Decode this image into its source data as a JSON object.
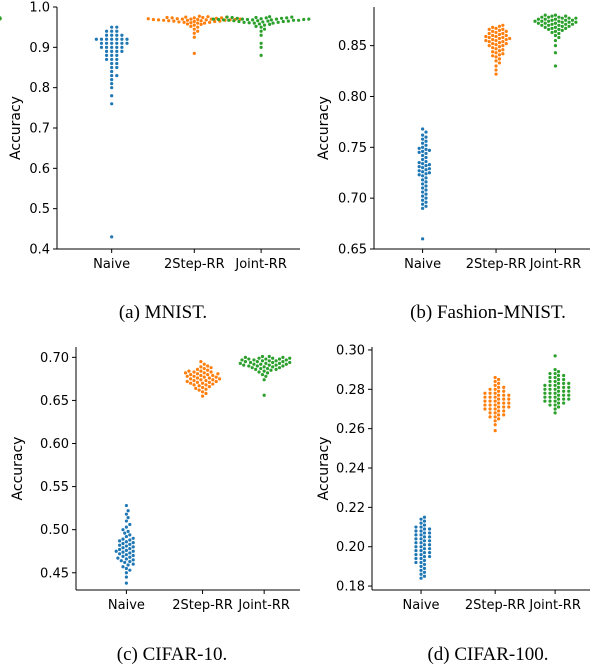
{
  "colors": {
    "naive": "#1f77b4",
    "twostep": "#ff7f0e",
    "joint": "#2ca02c",
    "axis": "#000000"
  },
  "chart_data": [
    {
      "type": "scatter",
      "caption": "(a) MNIST.",
      "ylabel": "Accuracy",
      "categories": [
        "Naive",
        "2Step-RR",
        "Joint-RR"
      ],
      "yticks": [
        "0.4",
        "0.5",
        "0.6",
        "0.7",
        "0.8",
        "0.9",
        "1.0"
      ],
      "ylim": [
        0.4,
        1.0
      ],
      "series": [
        {
          "values": [
            0.43,
            0.76,
            0.78,
            0.8,
            0.81,
            0.82,
            0.83,
            0.83,
            0.84,
            0.85,
            0.85,
            0.86,
            0.86,
            0.87,
            0.87,
            0.87,
            0.88,
            0.88,
            0.88,
            0.89,
            0.89,
            0.89,
            0.89,
            0.9,
            0.9,
            0.9,
            0.9,
            0.9,
            0.91,
            0.91,
            0.91,
            0.91,
            0.91,
            0.91,
            0.92,
            0.92,
            0.92,
            0.92,
            0.92,
            0.92,
            0.92,
            0.93,
            0.93,
            0.93,
            0.93,
            0.94,
            0.94,
            0.94,
            0.95,
            0.95
          ]
        },
        {
          "values": [
            0.885,
            0.925,
            0.935,
            0.94,
            0.945,
            0.95,
            0.952,
            0.955,
            0.957,
            0.958,
            0.96,
            0.96,
            0.961,
            0.962,
            0.962,
            0.963,
            0.964,
            0.964,
            0.965,
            0.965,
            0.966,
            0.966,
            0.967,
            0.967,
            0.967,
            0.968,
            0.968,
            0.968,
            0.969,
            0.969,
            0.969,
            0.97,
            0.97,
            0.97,
            0.97,
            0.971,
            0.971,
            0.971,
            0.972,
            0.972,
            0.972,
            0.973,
            0.973,
            0.973,
            0.974,
            0.974,
            0.975,
            0.975,
            0.976,
            0.977
          ]
        },
        {
          "values": [
            0.88,
            0.9,
            0.91,
            0.93,
            0.94,
            0.945,
            0.95,
            0.952,
            0.955,
            0.957,
            0.958,
            0.96,
            0.96,
            0.961,
            0.962,
            0.962,
            0.963,
            0.964,
            0.964,
            0.965,
            0.965,
            0.966,
            0.966,
            0.967,
            0.967,
            0.967,
            0.968,
            0.968,
            0.968,
            0.969,
            0.969,
            0.969,
            0.97,
            0.97,
            0.97,
            0.97,
            0.971,
            0.971,
            0.971,
            0.972,
            0.972,
            0.972,
            0.973,
            0.973,
            0.973,
            0.974,
            0.974,
            0.975,
            0.975,
            0.976
          ]
        }
      ]
    },
    {
      "type": "scatter",
      "caption": "(b) Fashion-MNIST.",
      "ylabel": "Accuracy",
      "categories": [
        "Naive",
        "2Step-RR",
        "Joint-RR"
      ],
      "yticks": [
        "0.65",
        "0.70",
        "0.75",
        "0.80",
        "0.85"
      ],
      "ylim": [
        0.65,
        0.888
      ],
      "series": [
        {
          "values": [
            0.66,
            0.69,
            0.692,
            0.694,
            0.696,
            0.698,
            0.7,
            0.702,
            0.704,
            0.706,
            0.708,
            0.71,
            0.712,
            0.714,
            0.716,
            0.718,
            0.72,
            0.722,
            0.723,
            0.724,
            0.725,
            0.726,
            0.727,
            0.728,
            0.729,
            0.73,
            0.731,
            0.732,
            0.733,
            0.734,
            0.735,
            0.736,
            0.738,
            0.74,
            0.742,
            0.744,
            0.745,
            0.746,
            0.747,
            0.748,
            0.749,
            0.75,
            0.752,
            0.754,
            0.756,
            0.758,
            0.76,
            0.762,
            0.765,
            0.768
          ]
        },
        {
          "values": [
            0.822,
            0.826,
            0.83,
            0.833,
            0.835,
            0.837,
            0.839,
            0.84,
            0.841,
            0.842,
            0.843,
            0.844,
            0.845,
            0.846,
            0.847,
            0.848,
            0.849,
            0.85,
            0.85,
            0.851,
            0.852,
            0.852,
            0.853,
            0.854,
            0.854,
            0.855,
            0.855,
            0.856,
            0.856,
            0.857,
            0.857,
            0.858,
            0.858,
            0.859,
            0.859,
            0.86,
            0.86,
            0.861,
            0.862,
            0.862,
            0.863,
            0.864,
            0.864,
            0.865,
            0.866,
            0.866,
            0.867,
            0.868,
            0.869,
            0.87
          ]
        },
        {
          "values": [
            0.83,
            0.843,
            0.85,
            0.855,
            0.858,
            0.86,
            0.862,
            0.863,
            0.864,
            0.865,
            0.866,
            0.866,
            0.867,
            0.867,
            0.868,
            0.868,
            0.869,
            0.869,
            0.87,
            0.87,
            0.87,
            0.871,
            0.871,
            0.871,
            0.872,
            0.872,
            0.872,
            0.873,
            0.873,
            0.873,
            0.874,
            0.874,
            0.874,
            0.874,
            0.875,
            0.875,
            0.875,
            0.876,
            0.876,
            0.876,
            0.877,
            0.877,
            0.877,
            0.878,
            0.878,
            0.878,
            0.879,
            0.879,
            0.88,
            0.88
          ]
        }
      ]
    },
    {
      "type": "scatter",
      "caption": "(c) CIFAR-10.",
      "ylabel": "Accuracy",
      "categories": [
        "Naive",
        "2Step-RR",
        "Joint-RR"
      ],
      "yticks": [
        "0.45",
        "0.50",
        "0.55",
        "0.60",
        "0.65",
        "0.70"
      ],
      "ylim": [
        0.43,
        0.712
      ],
      "series": [
        {
          "values": [
            0.438,
            0.445,
            0.45,
            0.453,
            0.455,
            0.457,
            0.459,
            0.46,
            0.462,
            0.463,
            0.464,
            0.465,
            0.466,
            0.467,
            0.468,
            0.469,
            0.47,
            0.471,
            0.472,
            0.473,
            0.474,
            0.475,
            0.475,
            0.476,
            0.477,
            0.478,
            0.479,
            0.48,
            0.481,
            0.482,
            0.483,
            0.484,
            0.485,
            0.486,
            0.487,
            0.488,
            0.489,
            0.49,
            0.492,
            0.494,
            0.496,
            0.498,
            0.5,
            0.503,
            0.506,
            0.51,
            0.514,
            0.518,
            0.522,
            0.528
          ]
        },
        {
          "values": [
            0.655,
            0.658,
            0.66,
            0.662,
            0.663,
            0.664,
            0.665,
            0.666,
            0.667,
            0.668,
            0.668,
            0.669,
            0.67,
            0.67,
            0.671,
            0.671,
            0.672,
            0.672,
            0.673,
            0.673,
            0.674,
            0.674,
            0.675,
            0.675,
            0.676,
            0.676,
            0.677,
            0.677,
            0.678,
            0.678,
            0.679,
            0.679,
            0.68,
            0.68,
            0.681,
            0.681,
            0.682,
            0.682,
            0.683,
            0.683,
            0.684,
            0.684,
            0.685,
            0.686,
            0.687,
            0.688,
            0.689,
            0.69,
            0.692,
            0.695
          ]
        },
        {
          "values": [
            0.656,
            0.674,
            0.678,
            0.68,
            0.682,
            0.683,
            0.684,
            0.685,
            0.686,
            0.686,
            0.687,
            0.687,
            0.688,
            0.688,
            0.689,
            0.689,
            0.69,
            0.69,
            0.69,
            0.691,
            0.691,
            0.691,
            0.692,
            0.692,
            0.692,
            0.693,
            0.693,
            0.693,
            0.694,
            0.694,
            0.694,
            0.695,
            0.695,
            0.695,
            0.696,
            0.696,
            0.696,
            0.697,
            0.697,
            0.697,
            0.698,
            0.698,
            0.698,
            0.699,
            0.699,
            0.699,
            0.7,
            0.7,
            0.701,
            0.701
          ]
        }
      ]
    },
    {
      "type": "scatter",
      "caption": "(d) CIFAR-100.",
      "ylabel": "Accuracy",
      "categories": [
        "Naive",
        "2Step-RR",
        "Joint-RR"
      ],
      "yticks": [
        "0.18",
        "0.20",
        "0.22",
        "0.24",
        "0.26",
        "0.28",
        "0.30"
      ],
      "ylim": [
        0.178,
        0.3015
      ],
      "series": [
        {
          "values": [
            0.184,
            0.185,
            0.186,
            0.187,
            0.188,
            0.189,
            0.19,
            0.191,
            0.192,
            0.192,
            0.193,
            0.194,
            0.194,
            0.195,
            0.195,
            0.196,
            0.196,
            0.197,
            0.197,
            0.198,
            0.198,
            0.199,
            0.199,
            0.2,
            0.2,
            0.201,
            0.201,
            0.202,
            0.202,
            0.203,
            0.203,
            0.204,
            0.204,
            0.205,
            0.205,
            0.206,
            0.206,
            0.207,
            0.207,
            0.208,
            0.208,
            0.209,
            0.209,
            0.21,
            0.21,
            0.211,
            0.212,
            0.213,
            0.214,
            0.215
          ]
        },
        {
          "values": [
            0.259,
            0.262,
            0.264,
            0.265,
            0.266,
            0.266,
            0.267,
            0.267,
            0.268,
            0.268,
            0.269,
            0.269,
            0.27,
            0.27,
            0.27,
            0.271,
            0.271,
            0.271,
            0.272,
            0.272,
            0.272,
            0.273,
            0.273,
            0.273,
            0.274,
            0.274,
            0.274,
            0.275,
            0.275,
            0.275,
            0.276,
            0.276,
            0.276,
            0.277,
            0.277,
            0.277,
            0.278,
            0.278,
            0.278,
            0.279,
            0.279,
            0.28,
            0.28,
            0.281,
            0.281,
            0.282,
            0.283,
            0.284,
            0.285,
            0.286
          ]
        },
        {
          "values": [
            0.268,
            0.27,
            0.271,
            0.272,
            0.272,
            0.273,
            0.273,
            0.274,
            0.274,
            0.274,
            0.275,
            0.275,
            0.275,
            0.276,
            0.276,
            0.276,
            0.277,
            0.277,
            0.277,
            0.278,
            0.278,
            0.278,
            0.279,
            0.279,
            0.279,
            0.28,
            0.28,
            0.28,
            0.281,
            0.281,
            0.281,
            0.282,
            0.282,
            0.282,
            0.283,
            0.283,
            0.283,
            0.284,
            0.284,
            0.285,
            0.285,
            0.286,
            0.286,
            0.287,
            0.287,
            0.288,
            0.288,
            0.289,
            0.29,
            0.297
          ]
        }
      ]
    }
  ]
}
